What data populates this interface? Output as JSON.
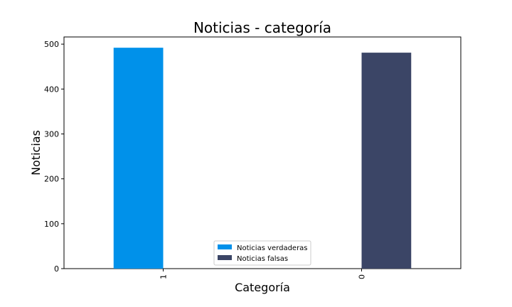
{
  "chart_data": {
    "type": "bar",
    "title": "Noticias - categoría",
    "xlabel": "Categoría",
    "ylabel": "Noticias",
    "categories": [
      "1",
      "0"
    ],
    "series": [
      {
        "name": "Noticias verdaderas",
        "color": "#0091ea",
        "values": [
          492,
          null
        ]
      },
      {
        "name": "Noticias falsas",
        "color": "#3b4566",
        "values": [
          null,
          481
        ]
      }
    ],
    "ylim": [
      0,
      516
    ],
    "yticks": [
      0,
      100,
      200,
      300,
      400,
      500
    ],
    "grid": false,
    "legend_position": "bottom-center",
    "xtick_rotation": 90
  }
}
